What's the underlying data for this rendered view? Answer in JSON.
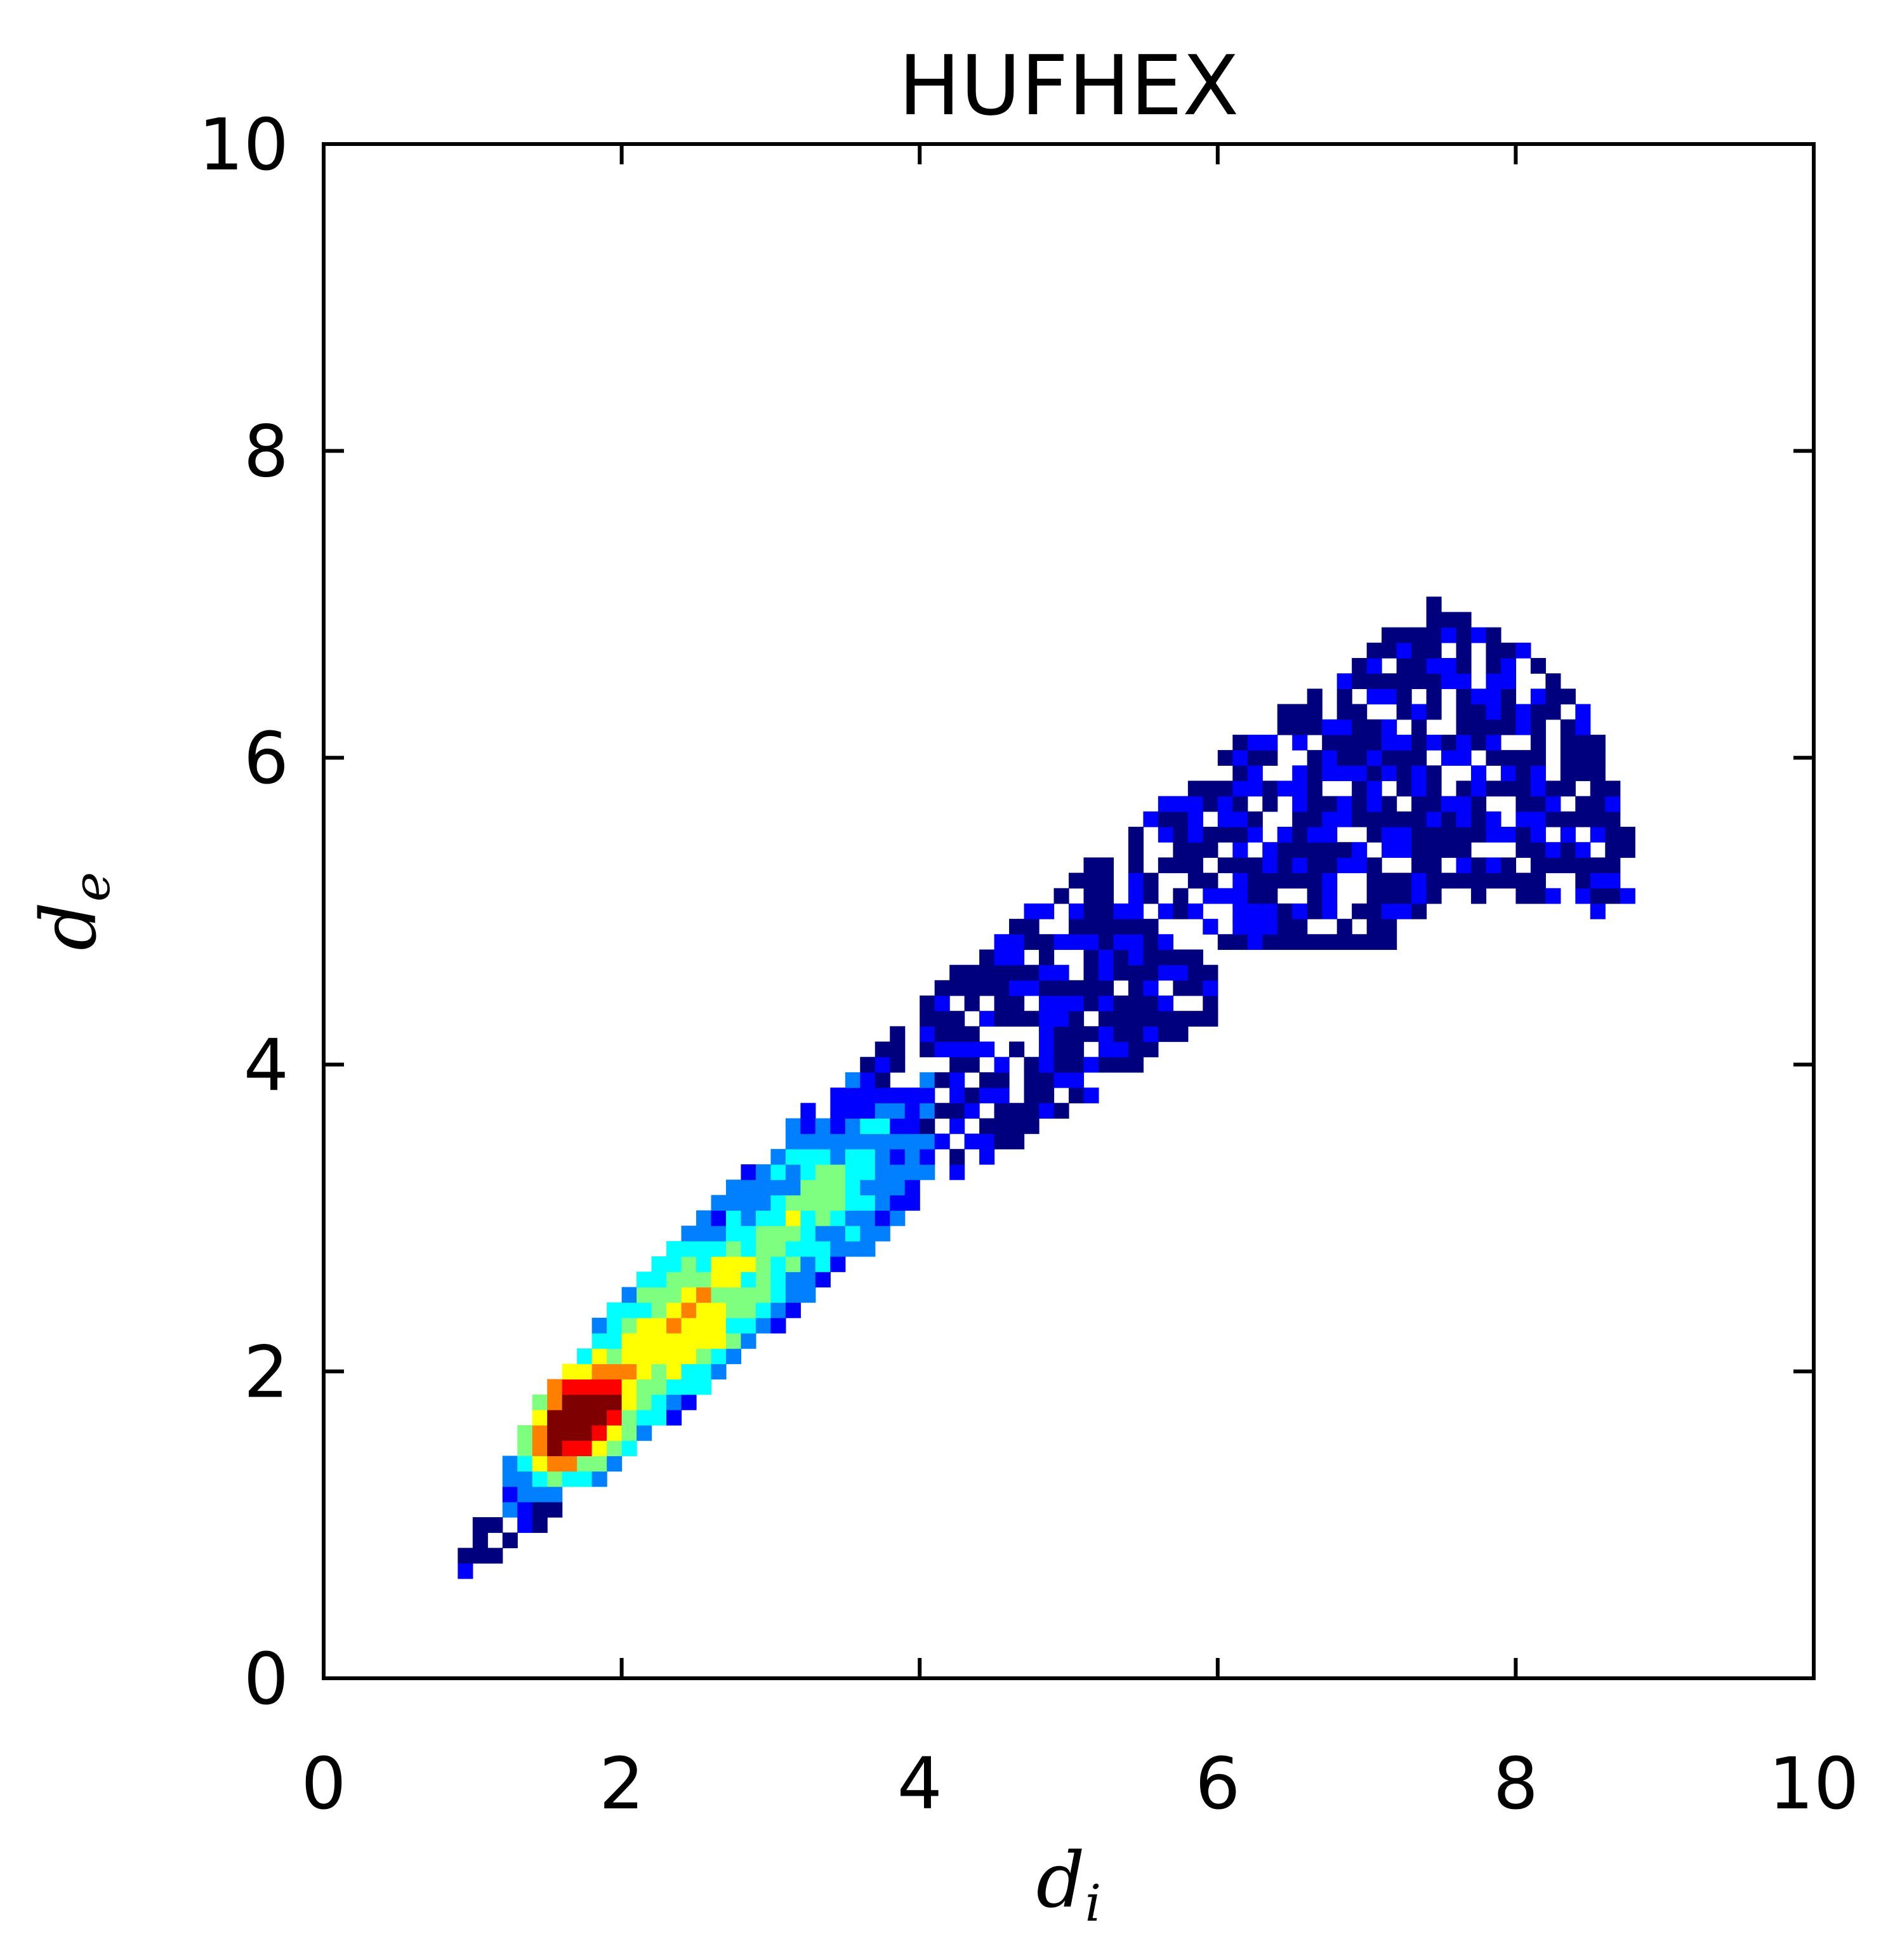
{
  "chart_data": {
    "type": "heatmap",
    "title": "HUFHEX",
    "xlabel": {
      "base": "d",
      "subscript": "i"
    },
    "ylabel": {
      "base": "d",
      "subscript": "e"
    },
    "xlim": [
      0,
      10
    ],
    "ylim": [
      0,
      10
    ],
    "xticks": [
      0,
      2,
      4,
      6,
      8,
      10
    ],
    "yticks": [
      0,
      2,
      4,
      6,
      8,
      10
    ],
    "xtick_labels": [
      "0",
      "2",
      "4",
      "6",
      "8",
      "10"
    ],
    "ytick_labels": [
      "0",
      "2",
      "4",
      "6",
      "8",
      "10"
    ],
    "bin_width": 0.1,
    "colormap": "jet",
    "colormap_stops": [
      "#00007f",
      "#0000ff",
      "#007fff",
      "#00ffff",
      "#7fff7f",
      "#ffff00",
      "#ff7f00",
      "#ff0000",
      "#7f0000"
    ],
    "grid": false,
    "ridge": {
      "points": [
        {
          "di": 0.95,
          "de": 0.75
        },
        {
          "di": 1.5,
          "de": 1.45
        },
        {
          "di": 2.0,
          "de": 1.95
        },
        {
          "di": 3.0,
          "de": 2.85
        },
        {
          "di": 4.0,
          "de": 3.75
        },
        {
          "di": 5.0,
          "de": 4.45
        },
        {
          "di": 6.0,
          "de": 5.15
        },
        {
          "di": 7.0,
          "de": 5.7
        },
        {
          "di": 7.6,
          "de": 6.1
        },
        {
          "di": 8.3,
          "de": 5.6
        },
        {
          "di": 8.8,
          "de": 5.2
        }
      ],
      "halfwidth": [
        {
          "di": 0.95,
          "w": 0.05
        },
        {
          "di": 1.5,
          "w": 0.4
        },
        {
          "di": 2.5,
          "w": 0.55
        },
        {
          "di": 4.0,
          "w": 0.6
        },
        {
          "di": 6.0,
          "w": 0.8
        },
        {
          "di": 7.5,
          "w": 1.0
        },
        {
          "di": 8.5,
          "w": 0.4
        },
        {
          "di": 8.8,
          "w": 0.1
        }
      ],
      "floor": [
        {
          "di": 6.0,
          "de": 4.75
        },
        {
          "di": 6.6,
          "de": 4.85
        },
        {
          "di": 8.8,
          "de": 4.85
        }
      ],
      "ceiling": [
        {
          "di": 7.0,
          "de": 6.5
        },
        {
          "di": 7.6,
          "de": 6.95
        },
        {
          "di": 8.0,
          "de": 6.7
        },
        {
          "di": 8.5,
          "de": 6.25
        },
        {
          "di": 8.8,
          "de": 5.3
        }
      ]
    },
    "hotspots": [
      {
        "di": 1.65,
        "de": 1.7,
        "peak": 1.0,
        "spread": 0.45
      },
      {
        "di": 2.4,
        "de": 2.3,
        "peak": 0.55,
        "spread": 0.6
      },
      {
        "di": 3.3,
        "de": 3.1,
        "peak": 0.38,
        "spread": 0.8
      }
    ],
    "background_density": 0.1,
    "empty_fraction": 0.22
  }
}
